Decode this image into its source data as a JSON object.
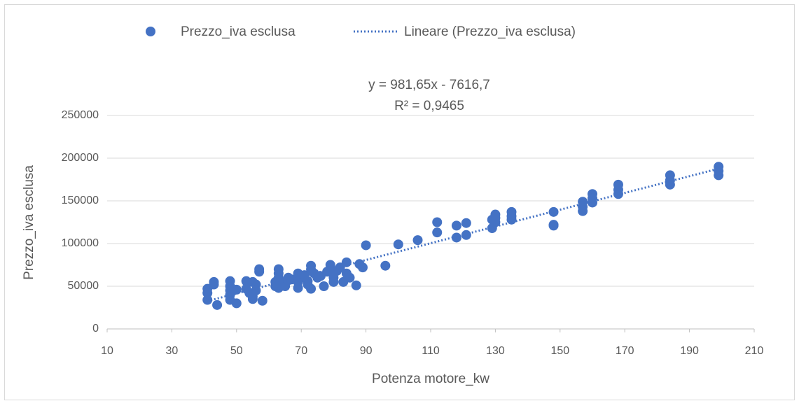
{
  "chart_data": {
    "type": "scatter",
    "x_label": "Potenza motore_kw",
    "y_label": "Prezzo_iva esclusa",
    "xlim": [
      10,
      210
    ],
    "xticks": [
      10,
      30,
      50,
      70,
      90,
      110,
      130,
      150,
      170,
      190,
      210
    ],
    "ylim": [
      0,
      250000
    ],
    "yticks": [
      0,
      50000,
      100000,
      150000,
      200000,
      250000
    ],
    "grid": true,
    "legend": "top",
    "x": [
      41,
      41,
      41,
      43,
      43,
      44,
      48,
      48,
      48,
      48,
      48,
      50,
      50,
      53,
      53,
      54,
      55,
      55,
      55,
      56,
      56,
      57,
      57,
      58,
      62,
      62,
      63,
      63,
      63,
      63,
      64,
      65,
      65,
      66,
      66,
      67,
      69,
      69,
      69,
      70,
      71,
      72,
      72,
      73,
      73,
      73,
      74,
      75,
      76,
      77,
      78,
      79,
      79,
      80,
      80,
      81,
      82,
      83,
      84,
      84,
      85,
      87,
      88,
      89,
      90,
      96,
      100,
      106,
      112,
      112,
      118,
      118,
      121,
      121,
      129,
      129,
      130,
      130,
      130,
      135,
      135,
      135,
      148,
      148,
      148,
      157,
      157,
      157,
      160,
      160,
      160,
      168,
      168,
      168,
      184,
      184,
      184,
      199,
      199,
      199
    ],
    "series": [
      {
        "name": "Prezzo_iva esclusa",
        "color": "#4472c4",
        "values": [
          47000,
          42000,
          34000,
          55000,
          52000,
          28000,
          56000,
          50000,
          45000,
          40000,
          34000,
          46000,
          30000,
          56000,
          47000,
          42000,
          55000,
          38000,
          35000,
          52000,
          45000,
          70000,
          67000,
          33000,
          50000,
          55000,
          70000,
          65000,
          60000,
          48000,
          52000,
          55000,
          50000,
          60000,
          57000,
          58000,
          65000,
          55000,
          48000,
          60000,
          63000,
          56000,
          52000,
          74000,
          70000,
          47000,
          65000,
          60000,
          62000,
          50000,
          67000,
          75000,
          70000,
          60000,
          55000,
          68000,
          72000,
          55000,
          78000,
          65000,
          60000,
          51000,
          76000,
          72000,
          98000,
          74000,
          99000,
          104000,
          125000,
          113000,
          121000,
          107000,
          124000,
          110000,
          128000,
          118000,
          134000,
          130000,
          125000,
          137000,
          132000,
          128000,
          137000,
          122000,
          121000,
          149000,
          143000,
          138000,
          158000,
          153000,
          148000,
          169000,
          163000,
          158000,
          180000,
          174000,
          169000,
          190000,
          185000,
          180000
        ]
      }
    ],
    "trendline": {
      "name": "Lineare (Prezzo_iva esclusa)",
      "color": "#4472c4",
      "equation": "y = 981,65x - 7616,7",
      "r2_label": "R² = 0,9465",
      "slope": 981.65,
      "intercept": -7616.7,
      "x_range": [
        41,
        199
      ]
    }
  }
}
